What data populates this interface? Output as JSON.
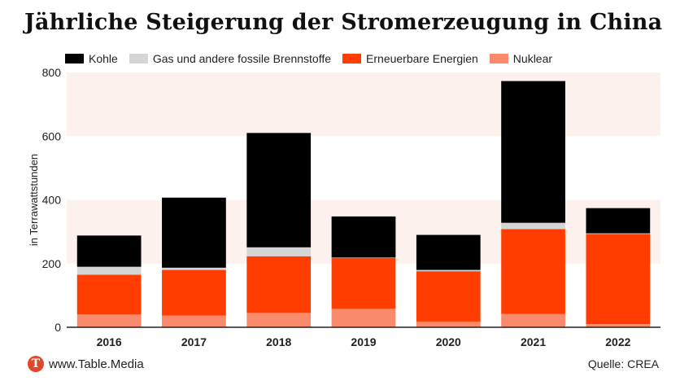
{
  "page": {
    "title": "Jährliche Steigerung der Stromerzeugung in China",
    "source": "Quelle: CREA",
    "logo_letter": "T",
    "logo_text": "www.Table.Media"
  },
  "chart_data": {
    "type": "bar",
    "stacked": true,
    "title": "Jährliche Steigerung der Stromerzeugung in China",
    "xlabel": "",
    "ylabel": "in Terrawattstunden",
    "ylim": [
      0,
      800
    ],
    "yticks": [
      0,
      200,
      400,
      600,
      800
    ],
    "categories": [
      "2016",
      "2017",
      "2018",
      "2019",
      "2020",
      "2021",
      "2022"
    ],
    "series": [
      {
        "name": "Nuklear",
        "color": "#f98a6b",
        "values": [
          40,
          37,
          45,
          58,
          18,
          42,
          10
        ]
      },
      {
        "name": "Erneuerbare Energien",
        "color": "#ff3d00",
        "values": [
          125,
          143,
          178,
          160,
          158,
          266,
          283
        ]
      },
      {
        "name": "Gas und andere fossile Brennstoffe",
        "color": "#d5d5d5",
        "values": [
          25,
          7,
          28,
          1,
          4,
          20,
          2
        ]
      },
      {
        "name": "Kohle",
        "color": "#000000",
        "values": [
          98,
          220,
          359,
          129,
          110,
          445,
          79
        ]
      }
    ],
    "legend_order": [
      "Kohle",
      "Gas und andere fossile Brennstoffe",
      "Erneuerbare Energien",
      "Nuklear"
    ],
    "legend_position": "top-left",
    "background_bands": "alternating light pink"
  }
}
